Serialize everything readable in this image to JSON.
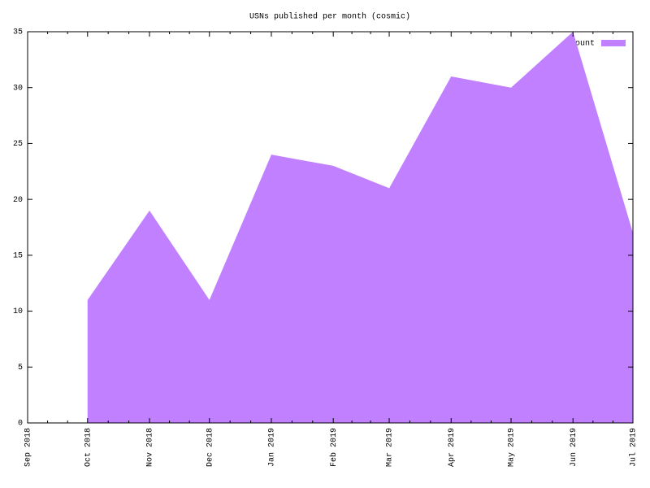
{
  "chart_data": {
    "type": "area",
    "title": "USNs published per month (cosmic)",
    "x": [
      "2018-10",
      "2018-11",
      "2018-12",
      "2019-01",
      "2019-02",
      "2019-03",
      "2019-04",
      "2019-05",
      "2019-06",
      "2019-07"
    ],
    "series": [
      {
        "name": "count",
        "color": "#c080ff",
        "values": [
          11,
          19,
          11,
          24,
          23,
          21,
          31,
          30,
          35,
          17
        ]
      }
    ],
    "xlim": [
      "2018-09",
      "2019-07"
    ],
    "xticks": [
      {
        "value": "2018-09",
        "label": "Sep 2018"
      },
      {
        "value": "2018-10",
        "label": "Oct 2018"
      },
      {
        "value": "2018-11",
        "label": "Nov 2018"
      },
      {
        "value": "2018-12",
        "label": "Dec 2018"
      },
      {
        "value": "2019-01",
        "label": "Jan 2019"
      },
      {
        "value": "2019-02",
        "label": "Feb 2019"
      },
      {
        "value": "2019-03",
        "label": "Mar 2019"
      },
      {
        "value": "2019-04",
        "label": "Apr 2019"
      },
      {
        "value": "2019-05",
        "label": "May 2019"
      },
      {
        "value": "2019-06",
        "label": "Jun 2019"
      },
      {
        "value": "2019-07",
        "label": "Jul 2019"
      }
    ],
    "ylim": [
      0,
      35
    ],
    "yticks": [
      0,
      5,
      10,
      15,
      20,
      25,
      30,
      35
    ],
    "legend": "top-right"
  }
}
